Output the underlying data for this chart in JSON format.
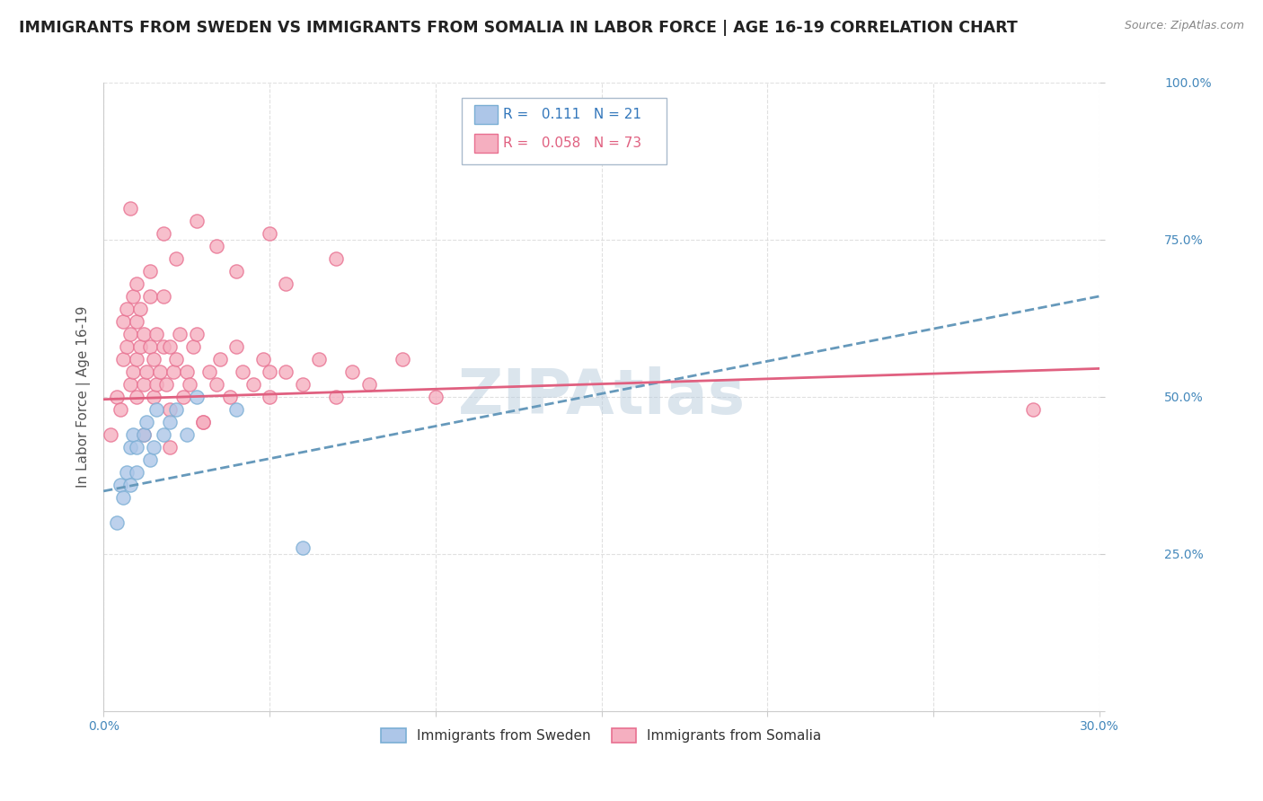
{
  "title": "IMMIGRANTS FROM SWEDEN VS IMMIGRANTS FROM SOMALIA IN LABOR FORCE | AGE 16-19 CORRELATION CHART",
  "source": "Source: ZipAtlas.com",
  "ylabel": "In Labor Force | Age 16-19",
  "xlim": [
    0.0,
    0.3
  ],
  "ylim": [
    0.0,
    1.0
  ],
  "xticks": [
    0.0,
    0.05,
    0.1,
    0.15,
    0.2,
    0.25,
    0.3
  ],
  "yticks": [
    0.0,
    0.25,
    0.5,
    0.75,
    1.0
  ],
  "xtick_labels": [
    "0.0%",
    "",
    "",
    "",
    "",
    "",
    "30.0%"
  ],
  "ytick_labels": [
    "",
    "25.0%",
    "50.0%",
    "75.0%",
    "100.0%"
  ],
  "legend_sweden": "Immigrants from Sweden",
  "legend_somalia": "Immigrants from Somalia",
  "sweden_R": "0.111",
  "sweden_N": "21",
  "somalia_R": "0.058",
  "somalia_N": "73",
  "sweden_color": "#adc6e8",
  "somalia_color": "#f5afc0",
  "sweden_edge_color": "#7aaed4",
  "somalia_edge_color": "#e87090",
  "sweden_trend_color": "#6699bb",
  "somalia_trend_color": "#e06080",
  "watermark": "ZIPAtlas",
  "sweden_points_x": [
    0.004,
    0.005,
    0.006,
    0.007,
    0.008,
    0.008,
    0.009,
    0.01,
    0.01,
    0.012,
    0.013,
    0.014,
    0.015,
    0.016,
    0.018,
    0.02,
    0.022,
    0.025,
    0.028,
    0.04,
    0.06
  ],
  "sweden_points_y": [
    0.3,
    0.36,
    0.34,
    0.38,
    0.36,
    0.42,
    0.44,
    0.38,
    0.42,
    0.44,
    0.46,
    0.4,
    0.42,
    0.48,
    0.44,
    0.46,
    0.48,
    0.44,
    0.5,
    0.48,
    0.26
  ],
  "somalia_points_x": [
    0.002,
    0.004,
    0.005,
    0.006,
    0.006,
    0.007,
    0.007,
    0.008,
    0.008,
    0.009,
    0.009,
    0.01,
    0.01,
    0.01,
    0.011,
    0.011,
    0.012,
    0.012,
    0.013,
    0.014,
    0.014,
    0.015,
    0.015,
    0.016,
    0.016,
    0.017,
    0.018,
    0.018,
    0.019,
    0.02,
    0.02,
    0.021,
    0.022,
    0.023,
    0.024,
    0.025,
    0.026,
    0.027,
    0.028,
    0.03,
    0.032,
    0.034,
    0.035,
    0.038,
    0.04,
    0.042,
    0.045,
    0.048,
    0.05,
    0.055,
    0.06,
    0.065,
    0.07,
    0.075,
    0.08,
    0.09,
    0.1,
    0.055,
    0.03,
    0.012,
    0.05,
    0.07,
    0.02,
    0.014,
    0.01,
    0.008,
    0.018,
    0.022,
    0.028,
    0.034,
    0.04,
    0.05,
    0.28
  ],
  "somalia_points_y": [
    0.44,
    0.5,
    0.48,
    0.56,
    0.62,
    0.58,
    0.64,
    0.52,
    0.6,
    0.54,
    0.66,
    0.5,
    0.56,
    0.62,
    0.58,
    0.64,
    0.52,
    0.6,
    0.54,
    0.58,
    0.66,
    0.5,
    0.56,
    0.52,
    0.6,
    0.54,
    0.58,
    0.66,
    0.52,
    0.48,
    0.58,
    0.54,
    0.56,
    0.6,
    0.5,
    0.54,
    0.52,
    0.58,
    0.6,
    0.46,
    0.54,
    0.52,
    0.56,
    0.5,
    0.58,
    0.54,
    0.52,
    0.56,
    0.5,
    0.54,
    0.52,
    0.56,
    0.5,
    0.54,
    0.52,
    0.56,
    0.5,
    0.68,
    0.46,
    0.44,
    0.54,
    0.72,
    0.42,
    0.7,
    0.68,
    0.8,
    0.76,
    0.72,
    0.78,
    0.74,
    0.7,
    0.76,
    0.48
  ],
  "title_fontsize": 12.5,
  "axis_label_fontsize": 11,
  "tick_fontsize": 10,
  "legend_fontsize": 11,
  "watermark_fontsize": 50,
  "background_color": "#ffffff",
  "grid_color": "#dddddd",
  "sweden_trend_x0": 0.0,
  "sweden_trend_y0": 0.35,
  "sweden_trend_x1": 0.3,
  "sweden_trend_y1": 0.66,
  "somalia_trend_x0": 0.0,
  "somalia_trend_y0": 0.496,
  "somalia_trend_x1": 0.3,
  "somalia_trend_y1": 0.545
}
